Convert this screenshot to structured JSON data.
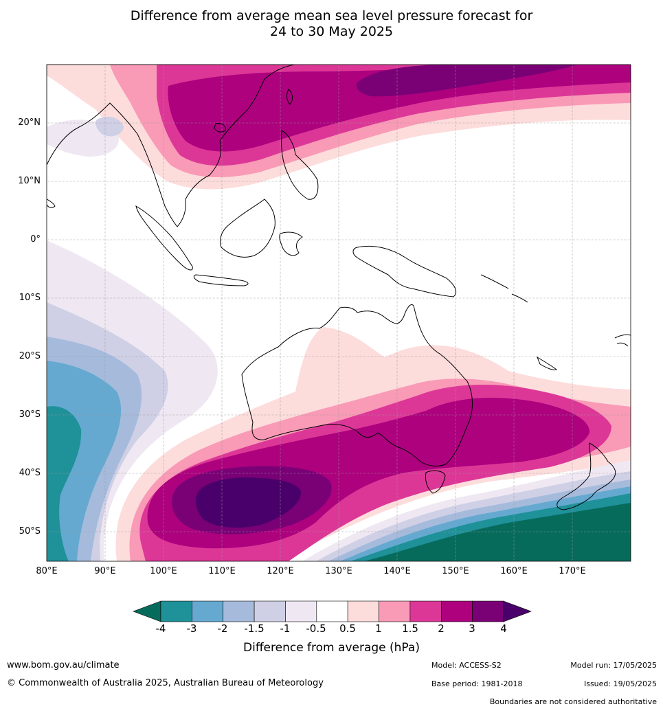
{
  "title": {
    "line1": "Difference from average mean sea level pressure forecast for",
    "line2": "24 to 30 May 2025"
  },
  "map": {
    "lat_labels": [
      "20°N",
      "10°N",
      "0°",
      "10°S",
      "20°S",
      "30°S",
      "40°S",
      "50°S"
    ],
    "lon_labels": [
      "80°E",
      "90°E",
      "100°E",
      "110°E",
      "120°E",
      "130°E",
      "140°E",
      "150°E",
      "160°E",
      "170°E"
    ],
    "extent": {
      "lon": [
        80,
        180
      ],
      "lat": [
        -55,
        30
      ]
    }
  },
  "colorbar": {
    "ticks": [
      "-4",
      "-3",
      "-2",
      "-1.5",
      "-1",
      "-0.5",
      "0.5",
      "1",
      "1.5",
      "2",
      "3",
      "4"
    ],
    "colors": [
      "#076b5c",
      "#1f9199",
      "#65a9d0",
      "#a6bbdc",
      "#cfd0e6",
      "#efe8f2",
      "#ffffff",
      "#fddcdc",
      "#f99ab6",
      "#dc3797",
      "#ad017e",
      "#7a0076",
      "#4a006a"
    ],
    "label": "Difference from average (hPa)"
  },
  "footer": {
    "url": "www.bom.gov.au/climate",
    "copyright": "© Commonwealth of Australia 2025, Australian Bureau of Meteorology",
    "model": "Model: ACCESS-S2",
    "base_period": "Base period: 1981-2018",
    "model_run": "Model run: 17/05/2025",
    "issued": "Issued: 19/05/2025",
    "boundaries": "Boundaries are not considered authoritative"
  }
}
